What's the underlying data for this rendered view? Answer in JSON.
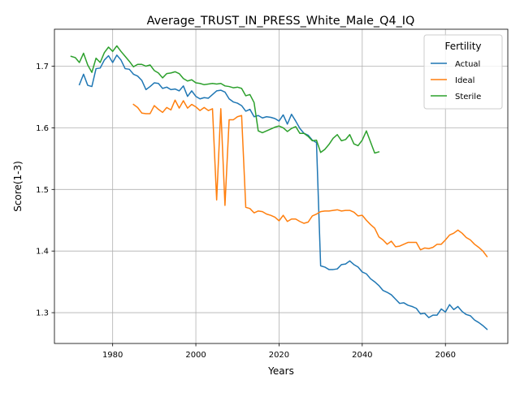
{
  "chart_data": {
    "type": "line",
    "title": "Average_TRUST_IN_PRESS_White_Male_Q4_IQ",
    "xlabel": "Years",
    "ylabel": "Score(1-3)",
    "xlim": [
      1966,
      2075
    ],
    "ylim": [
      1.25,
      1.76
    ],
    "xticks": [
      1980,
      2000,
      2020,
      2040,
      2060
    ],
    "yticks": [
      1.3,
      1.4,
      1.5,
      1.6,
      1.7
    ],
    "xtick_labels": [
      "1980",
      "2000",
      "2020",
      "2040",
      "2060"
    ],
    "ytick_labels": [
      "1.3",
      "1.4",
      "1.5",
      "1.6",
      "1.7"
    ],
    "grid": true,
    "legend": {
      "title": "Fertility",
      "position": "top-right"
    },
    "series": [
      {
        "name": "Actual",
        "color": "#1f77b4",
        "x": [
          1972,
          1973,
          1974,
          1975,
          1976,
          1977,
          1978,
          1979,
          1980,
          1981,
          1982,
          1983,
          1984,
          1985,
          1986,
          1987,
          1988,
          1989,
          1990,
          1991,
          1992,
          1993,
          1994,
          1995,
          1996,
          1997,
          1998,
          1999,
          2000,
          2001,
          2002,
          2003,
          2004,
          2005,
          2006,
          2007,
          2008,
          2009,
          2010,
          2011,
          2012,
          2013,
          2014,
          2015,
          2016,
          2017,
          2018,
          2019,
          2020,
          2021,
          2022,
          2023,
          2024,
          2025,
          2026,
          2027,
          2028,
          2029,
          2030,
          2031,
          2032,
          2033,
          2034,
          2035,
          2036,
          2037,
          2038,
          2039,
          2040,
          2041,
          2042,
          2043,
          2044,
          2045,
          2046,
          2047,
          2048,
          2049,
          2050,
          2051,
          2052,
          2053,
          2054,
          2055,
          2056,
          2057,
          2058,
          2059,
          2060,
          2061,
          2062,
          2063,
          2064,
          2065,
          2066,
          2067,
          2068,
          2069,
          2070
        ],
        "values": [
          1.67,
          1.687,
          1.669,
          1.667,
          1.696,
          1.697,
          1.71,
          1.717,
          1.706,
          1.718,
          1.71,
          1.696,
          1.695,
          1.687,
          1.684,
          1.677,
          1.662,
          1.667,
          1.673,
          1.672,
          1.664,
          1.666,
          1.662,
          1.663,
          1.66,
          1.668,
          1.651,
          1.66,
          1.651,
          1.647,
          1.649,
          1.648,
          1.654,
          1.66,
          1.661,
          1.658,
          1.647,
          1.642,
          1.64,
          1.636,
          1.627,
          1.63,
          1.618,
          1.62,
          1.616,
          1.618,
          1.617,
          1.615,
          1.611,
          1.621,
          1.606,
          1.622,
          1.611,
          1.599,
          1.591,
          1.588,
          1.58,
          1.576,
          1.376,
          1.374,
          1.37,
          1.37,
          1.371,
          1.378,
          1.379,
          1.384,
          1.378,
          1.374,
          1.366,
          1.363,
          1.355,
          1.35,
          1.344,
          1.336,
          1.333,
          1.329,
          1.322,
          1.315,
          1.316,
          1.312,
          1.31,
          1.307,
          1.298,
          1.299,
          1.292,
          1.296,
          1.296,
          1.306,
          1.301,
          1.313,
          1.305,
          1.31,
          1.302,
          1.297,
          1.295,
          1.288,
          1.284,
          1.279,
          1.273
        ]
      },
      {
        "name": "Ideal",
        "color": "#ff7f0e",
        "x": [
          1985,
          1986,
          1987,
          1988,
          1989,
          1990,
          1991,
          1992,
          1993,
          1994,
          1995,
          1996,
          1997,
          1998,
          1999,
          2000,
          2001,
          2002,
          2003,
          2004,
          2005,
          2006,
          2007,
          2008,
          2009,
          2010,
          2011,
          2012,
          2013,
          2014,
          2015,
          2016,
          2017,
          2018,
          2019,
          2020,
          2021,
          2022,
          2023,
          2024,
          2025,
          2026,
          2027,
          2028,
          2029,
          2030,
          2031,
          2032,
          2033,
          2034,
          2035,
          2036,
          2037,
          2038,
          2039,
          2040,
          2041,
          2042,
          2043,
          2044,
          2045,
          2046,
          2047,
          2048,
          2049,
          2050,
          2051,
          2052,
          2053,
          2054,
          2055,
          2056,
          2057,
          2058,
          2059,
          2060,
          2061,
          2062,
          2063,
          2064,
          2065,
          2066,
          2067,
          2068,
          2069,
          2070
        ],
        "values": [
          1.638,
          1.633,
          1.624,
          1.623,
          1.623,
          1.636,
          1.63,
          1.625,
          1.633,
          1.629,
          1.645,
          1.632,
          1.644,
          1.632,
          1.638,
          1.634,
          1.628,
          1.633,
          1.628,
          1.631,
          1.483,
          1.631,
          1.474,
          1.613,
          1.613,
          1.618,
          1.62,
          1.471,
          1.469,
          1.462,
          1.465,
          1.464,
          1.46,
          1.458,
          1.455,
          1.449,
          1.458,
          1.448,
          1.452,
          1.452,
          1.448,
          1.445,
          1.447,
          1.457,
          1.46,
          1.464,
          1.465,
          1.465,
          1.466,
          1.467,
          1.465,
          1.466,
          1.466,
          1.463,
          1.457,
          1.458,
          1.45,
          1.443,
          1.437,
          1.423,
          1.418,
          1.411,
          1.416,
          1.407,
          1.408,
          1.411,
          1.414,
          1.414,
          1.414,
          1.402,
          1.405,
          1.404,
          1.406,
          1.411,
          1.411,
          1.418,
          1.426,
          1.429,
          1.434,
          1.429,
          1.422,
          1.418,
          1.411,
          1.406,
          1.4,
          1.391
        ]
      },
      {
        "name": "Sterile",
        "color": "#2ca02c",
        "x": [
          1970,
          1971,
          1972,
          1973,
          1974,
          1975,
          1976,
          1977,
          1978,
          1979,
          1980,
          1981,
          1982,
          1983,
          1984,
          1985,
          1986,
          1987,
          1988,
          1989,
          1990,
          1991,
          1992,
          1993,
          1994,
          1995,
          1996,
          1997,
          1998,
          1999,
          2000,
          2001,
          2002,
          2003,
          2004,
          2005,
          2006,
          2007,
          2008,
          2009,
          2010,
          2011,
          2012,
          2013,
          2014,
          2015,
          2016,
          2017,
          2018,
          2019,
          2020,
          2021,
          2022,
          2023,
          2024,
          2025,
          2026,
          2027,
          2028,
          2029,
          2030,
          2031,
          2032,
          2033,
          2034,
          2035,
          2036,
          2037,
          2038,
          2039,
          2040,
          2041,
          2042,
          2043,
          2044
        ],
        "values": [
          1.716,
          1.714,
          1.706,
          1.721,
          1.702,
          1.69,
          1.713,
          1.706,
          1.722,
          1.731,
          1.724,
          1.733,
          1.724,
          1.716,
          1.708,
          1.699,
          1.703,
          1.703,
          1.7,
          1.702,
          1.693,
          1.689,
          1.681,
          1.688,
          1.689,
          1.691,
          1.688,
          1.68,
          1.676,
          1.678,
          1.673,
          1.672,
          1.67,
          1.671,
          1.672,
          1.671,
          1.672,
          1.668,
          1.667,
          1.665,
          1.666,
          1.664,
          1.652,
          1.654,
          1.641,
          1.595,
          1.592,
          1.595,
          1.598,
          1.601,
          1.603,
          1.6,
          1.594,
          1.599,
          1.602,
          1.591,
          1.591,
          1.586,
          1.579,
          1.58,
          1.56,
          1.565,
          1.573,
          1.583,
          1.589,
          1.579,
          1.581,
          1.589,
          1.574,
          1.571,
          1.58,
          1.595,
          1.577,
          1.559,
          1.561
        ]
      }
    ]
  }
}
